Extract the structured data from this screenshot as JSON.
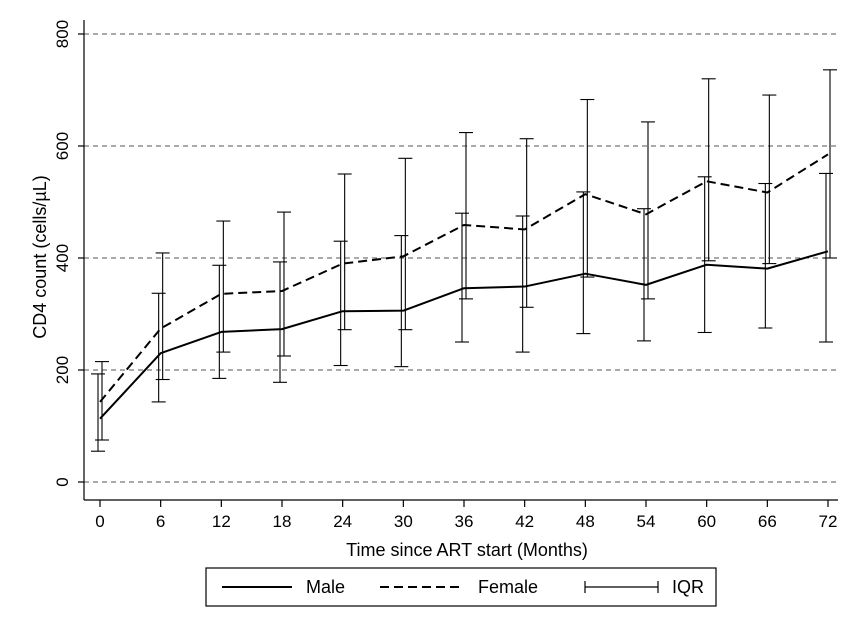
{
  "chart_data": {
    "type": "line",
    "xlabel": "Time since ART start (Months)",
    "ylabel": "CD4 count (cells/µL)",
    "x": [
      0,
      6,
      12,
      18,
      24,
      30,
      36,
      42,
      48,
      54,
      60,
      66,
      72
    ],
    "xticks": [
      "0",
      "6",
      "12",
      "18",
      "24",
      "30",
      "36",
      "42",
      "48",
      "54",
      "60",
      "66",
      "72"
    ],
    "yticks": [
      "0",
      "200",
      "400",
      "600",
      "800"
    ],
    "ylim": [
      0,
      800
    ],
    "xlim": [
      0,
      72
    ],
    "grid": "horizontal dashed",
    "legend_position": "bottom",
    "series": [
      {
        "name": "Male",
        "style": "solid",
        "values": [
          113,
          230,
          268,
          273,
          305,
          306,
          346,
          349,
          372,
          352,
          388,
          381,
          412
        ],
        "iqr_low": [
          55,
          143,
          185,
          178,
          208,
          206,
          250,
          232,
          265,
          252,
          267,
          275,
          250
        ],
        "iqr_high": [
          193,
          337,
          387,
          393,
          430,
          440,
          480,
          475,
          518,
          488,
          545,
          533,
          551
        ]
      },
      {
        "name": "Female",
        "style": "dashed",
        "values": [
          143,
          274,
          336,
          341,
          390,
          403,
          459,
          451,
          514,
          478,
          537,
          517,
          585
        ],
        "iqr_low": [
          75,
          183,
          232,
          225,
          272,
          272,
          327,
          312,
          366,
          327,
          395,
          390,
          400
        ],
        "iqr_high": [
          215,
          409,
          466,
          482,
          550,
          578,
          624,
          613,
          683,
          643,
          720,
          691,
          736
        ]
      }
    ],
    "legend": [
      {
        "label": "Male",
        "style": "solid"
      },
      {
        "label": "Female",
        "style": "dashed"
      },
      {
        "label": "IQR",
        "style": "errorbar"
      }
    ]
  }
}
